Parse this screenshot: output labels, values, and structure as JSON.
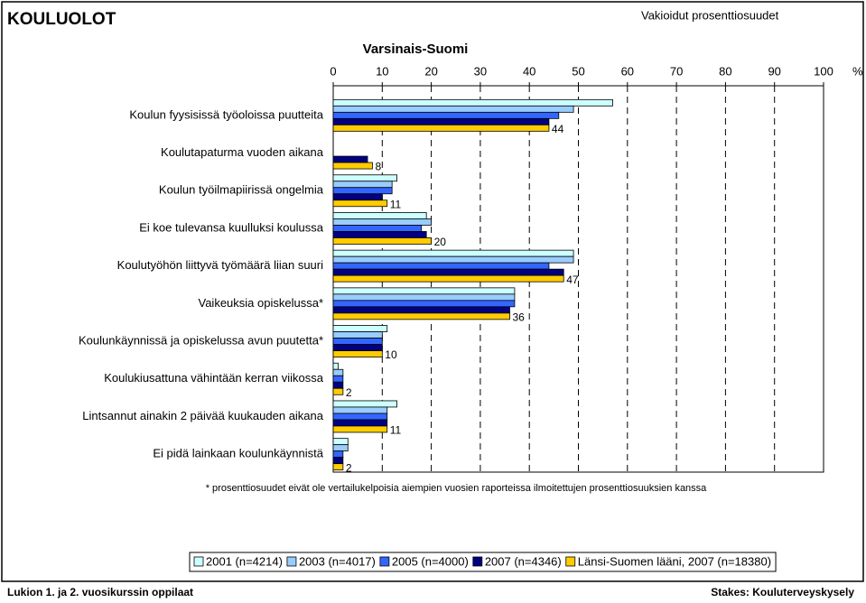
{
  "chart_data": {
    "type": "bar",
    "orientation": "horizontal",
    "title": "KOULUOLOT",
    "note": "Vakioidut prosenttiosuudet",
    "subtitle": "Varsinais-Suomi",
    "x_unit_label": "%",
    "footnote": "* prosenttiosuudet eivät ole vertailukelpoisia aiempien vuosien raporteissa ilmoitettujen prosenttiosuuksien kanssa",
    "footer_left": "Lukion 1. ja 2. vuosikurssin oppilaat",
    "footer_right": "Stakes: Kouluterveyskysely",
    "categories": [
      "Koulun fyysisissä työoloissa puutteita",
      "Koulutapaturma vuoden aikana",
      "Koulun työilmapiirissä ongelmia",
      "Ei koe tulevansa kuulluksi koulussa",
      "Koulutyöhön liittyvä työmäärä liian suuri",
      "Vaikeuksia opiskelussa*",
      "Koulunkäynnissä ja opiskelussa avun puutetta*",
      "Koulukiusattuna vähintään kerran viikossa",
      "Lintsannut ainakin 2 päivää kuukauden aikana",
      "Ei pidä lainkaan koulunkäynnistä"
    ],
    "series": [
      {
        "name": "2001 (n=4214)",
        "color": "#ccffff",
        "values": [
          57,
          null,
          13,
          19,
          49,
          37,
          11,
          1,
          13,
          3
        ]
      },
      {
        "name": "2003 (n=4017)",
        "color": "#99ccff",
        "values": [
          49,
          null,
          12,
          20,
          49,
          37,
          10,
          2,
          11,
          3
        ]
      },
      {
        "name": "2005 (n=4000)",
        "color": "#3366ff",
        "values": [
          46,
          null,
          12,
          18,
          44,
          37,
          10,
          2,
          11,
          2
        ]
      },
      {
        "name": "2007 (n=4346)",
        "color": "#000080",
        "values": [
          44,
          7,
          10,
          19,
          47,
          36,
          10,
          2,
          11,
          2
        ]
      },
      {
        "name": "Länsi-Suomen lääni, 2007 (n=18380)",
        "color": "#ffcc00",
        "values": [
          44,
          8,
          11,
          20,
          47,
          36,
          10,
          2,
          11,
          2
        ],
        "data_labels": true
      }
    ],
    "xlim": [
      0,
      100
    ],
    "xticks": [
      0,
      10,
      20,
      30,
      40,
      50,
      60,
      70,
      80,
      90,
      100
    ],
    "grid": true
  }
}
